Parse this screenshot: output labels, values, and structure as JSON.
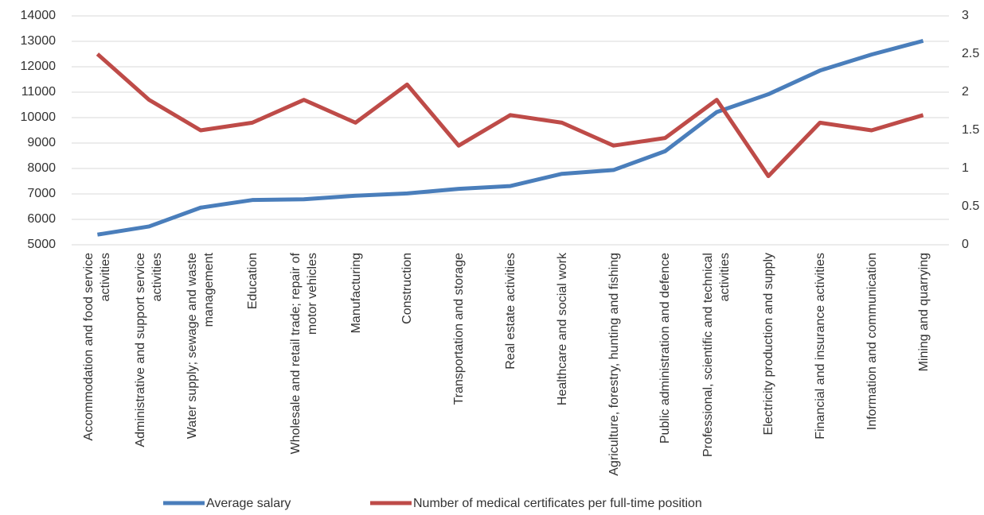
{
  "chart_data": {
    "type": "line",
    "categories": [
      "Accommodation and food service activities",
      "Administrative and support service activities",
      "Water supply; sewage and waste management",
      "Education",
      "Wholesale and retail trade; repair of motor vehicles",
      "Manufacturing",
      "Construction",
      "Transportation and storage",
      "Real estate activities",
      "Healthcare and social work",
      "Agriculture, forestry, hunting and fishing",
      "Public administration and defence",
      "Professional, scientific and technical activities",
      "Electricity production and supply",
      "Financial and insurance activities",
      "Information and communication",
      "Mining and quarrying"
    ],
    "series": [
      {
        "name": "Average salary",
        "color": "#4a7ebb",
        "values": [
          5400,
          5720,
          6460,
          6760,
          6790,
          6930,
          7020,
          7200,
          7310,
          7790,
          7940,
          8680,
          10220,
          10920,
          11850,
          12480,
          13020
        ]
      },
      {
        "name": "Number of medical certificates per full-time position",
        "color": "#be4b48",
        "axis": "y2",
        "values": [
          2.5,
          1.9,
          1.5,
          1.6,
          1.9,
          1.6,
          2.1,
          1.3,
          1.7,
          1.6,
          1.3,
          1.4,
          1.9,
          0.9,
          1.6,
          1.5,
          1.7
        ]
      }
    ],
    "ylim": [
      5000,
      14000
    ],
    "yticks": [
      5000,
      6000,
      7000,
      8000,
      9000,
      10000,
      11000,
      12000,
      13000,
      14000
    ],
    "y2lim": [
      0,
      3
    ],
    "y2ticks": [
      0,
      0.5,
      1,
      1.5,
      2,
      2.5,
      3
    ],
    "grid": true,
    "legend": "bottom"
  }
}
